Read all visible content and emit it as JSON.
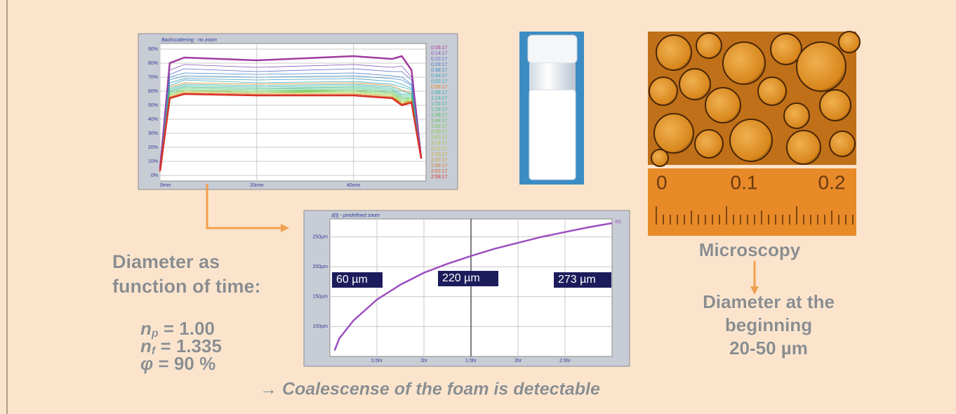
{
  "chart_data": [
    {
      "type": "line",
      "title": "Backscattering - no zoom",
      "x": [
        0,
        2,
        5,
        20,
        40,
        48,
        50,
        52,
        54
      ],
      "xlim": [
        0,
        55
      ],
      "ylim": [
        -4,
        94
      ],
      "xticks": [
        {
          "value": 0,
          "label": "0mm"
        },
        {
          "value": 20,
          "label": "20mm"
        },
        {
          "value": 40,
          "label": "40mm"
        }
      ],
      "yticks": [
        {
          "value": 0,
          "label": "0%"
        },
        {
          "value": 10,
          "label": "10%"
        },
        {
          "value": 20,
          "label": "20%"
        },
        {
          "value": 30,
          "label": "30%"
        },
        {
          "value": 40,
          "label": "40%"
        },
        {
          "value": 50,
          "label": "50%"
        },
        {
          "value": 60,
          "label": "60%"
        },
        {
          "value": 70,
          "label": "70%"
        },
        {
          "value": 80,
          "label": "80%"
        },
        {
          "value": 90,
          "label": "90%"
        }
      ],
      "grid": true,
      "series": [
        {
          "name": "0:06:17",
          "color": "#a03ca0",
          "values": [
            5,
            80,
            84,
            82,
            85,
            83,
            85,
            75,
            12
          ]
        },
        {
          "name": "0:14:17",
          "color": "#7b58b8",
          "values": [
            5,
            75,
            79,
            77,
            79,
            77,
            78,
            70,
            12
          ]
        },
        {
          "name": "0:22:17",
          "color": "#5a6ec8",
          "values": [
            4,
            72,
            76,
            74,
            76,
            74,
            74,
            68,
            12
          ]
        },
        {
          "name": "0:29:17",
          "color": "#4a80c8",
          "values": [
            4,
            70,
            73,
            72,
            73,
            71,
            70,
            65,
            12
          ]
        },
        {
          "name": "0:38:17",
          "color": "#3f90c8",
          "values": [
            4,
            68,
            71,
            70,
            71,
            69,
            68,
            64,
            12
          ]
        },
        {
          "name": "0:44:17",
          "color": "#3a9ec0",
          "values": [
            4,
            66,
            69,
            68,
            69,
            67,
            65,
            62,
            12
          ]
        },
        {
          "name": "0:52:17",
          "color": "#38aab8",
          "values": [
            4,
            64,
            68,
            66,
            67,
            65,
            63,
            61,
            12
          ]
        },
        {
          "name": "0:58:17",
          "color": "#e08a2a",
          "values": [
            4,
            63,
            66,
            65,
            66,
            64,
            61,
            59,
            12
          ]
        },
        {
          "name": "1:06:17",
          "color": "#35b0a8",
          "values": [
            4,
            62,
            65,
            64,
            65,
            63,
            60,
            58,
            12
          ]
        },
        {
          "name": "1:14:17",
          "color": "#35b49a",
          "values": [
            3,
            61,
            64,
            63,
            64,
            62,
            58,
            58,
            12
          ]
        },
        {
          "name": "1:22:17",
          "color": "#38b88a",
          "values": [
            3,
            60,
            63,
            62,
            63,
            61,
            57,
            57,
            12
          ]
        },
        {
          "name": "1:29:17",
          "color": "#40bc78",
          "values": [
            3,
            60,
            63,
            62,
            62,
            60,
            56,
            56,
            12
          ]
        },
        {
          "name": "1:36:17",
          "color": "#4cc068",
          "values": [
            3,
            59,
            62,
            61,
            61,
            59,
            55,
            55,
            12
          ]
        },
        {
          "name": "1:44:17",
          "color": "#5ac45a",
          "values": [
            3,
            58,
            61,
            60,
            61,
            59,
            55,
            55,
            12
          ]
        },
        {
          "name": "1:52:17",
          "color": "#6cc850",
          "values": [
            3,
            58,
            61,
            60,
            60,
            58,
            54,
            55,
            12
          ]
        },
        {
          "name": "2:00:17",
          "color": "#80cc48",
          "values": [
            3,
            57,
            60,
            59,
            60,
            58,
            53,
            54,
            12
          ]
        },
        {
          "name": "2:07:17",
          "color": "#94cc40",
          "values": [
            3,
            57,
            60,
            59,
            59,
            57,
            52,
            54,
            12
          ]
        },
        {
          "name": "2:15:17",
          "color": "#a8c83c",
          "values": [
            3,
            57,
            60,
            59,
            59,
            57,
            52,
            53,
            12
          ]
        },
        {
          "name": "2:22:17",
          "color": "#bcc038",
          "values": [
            3,
            56,
            59,
            58,
            58,
            56,
            52,
            53,
            12
          ]
        },
        {
          "name": "2:30:17",
          "color": "#ccb034",
          "values": [
            3,
            56,
            59,
            58,
            58,
            56,
            51,
            53,
            12
          ]
        },
        {
          "name": "2:37:17",
          "color": "#d49a30",
          "values": [
            3,
            56,
            59,
            58,
            58,
            56,
            51,
            53,
            12
          ]
        },
        {
          "name": "2:45:17",
          "color": "#d8802c",
          "values": [
            3,
            56,
            59,
            58,
            58,
            56,
            51,
            52,
            12
          ]
        },
        {
          "name": "2:52:17",
          "color": "#d8602a",
          "values": [
            3,
            55,
            58,
            57,
            57,
            55,
            50,
            52,
            12
          ]
        },
        {
          "name": "2:59:17",
          "color": "#d83028",
          "values": [
            3,
            55,
            58,
            57,
            57,
            55,
            50,
            52,
            12
          ]
        }
      ]
    },
    {
      "type": "line",
      "title": "d(t) - predefined zoom",
      "x": [
        0.05,
        0.1,
        0.25,
        0.5,
        0.75,
        1,
        1.25,
        1.5,
        1.75,
        2,
        2.25,
        2.5,
        2.75,
        3
      ],
      "xlim": [
        0,
        3
      ],
      "ylim": [
        50,
        280
      ],
      "xticks": [
        {
          "value": 0.5,
          "label": "0.5hr"
        },
        {
          "value": 1,
          "label": "1hr"
        },
        {
          "value": 1.5,
          "label": "1.5hr"
        },
        {
          "value": 2,
          "label": "2hr"
        },
        {
          "value": 2.5,
          "label": "2.5hr"
        }
      ],
      "yticks": [
        {
          "value": 100,
          "label": "100µm"
        },
        {
          "value": 150,
          "label": "150µm"
        },
        {
          "value": 200,
          "label": "200µm"
        },
        {
          "value": 250,
          "label": "250µm"
        }
      ],
      "grid": true,
      "series": [
        {
          "name": "d(t)",
          "color": "#9b4fc0",
          "values": [
            60,
            80,
            110,
            145,
            170,
            190,
            205,
            218,
            230,
            240,
            250,
            258,
            266,
            273
          ]
        }
      ],
      "annotations": [
        "60  µm",
        "220  µm",
        "273  µm"
      ]
    }
  ],
  "left_text": {
    "line1": "Diameter as",
    "line2": "function of time:"
  },
  "parameters": [
    {
      "symbol": "n",
      "sub": "p",
      "rest": " = 1.00"
    },
    {
      "symbol": "n",
      "sub": "f",
      "rest": " = 1.335"
    },
    {
      "symbol": "φ",
      "sub": "",
      "rest": " = 90 %"
    }
  ],
  "conclusion": "→ Coalescense of the foam is detectable",
  "microscopy": {
    "label": "Microscopy",
    "scale": [
      "0",
      "0.1",
      "0.2"
    ],
    "result": [
      "Diameter at the",
      "beginning",
      "20-50 µm"
    ]
  }
}
